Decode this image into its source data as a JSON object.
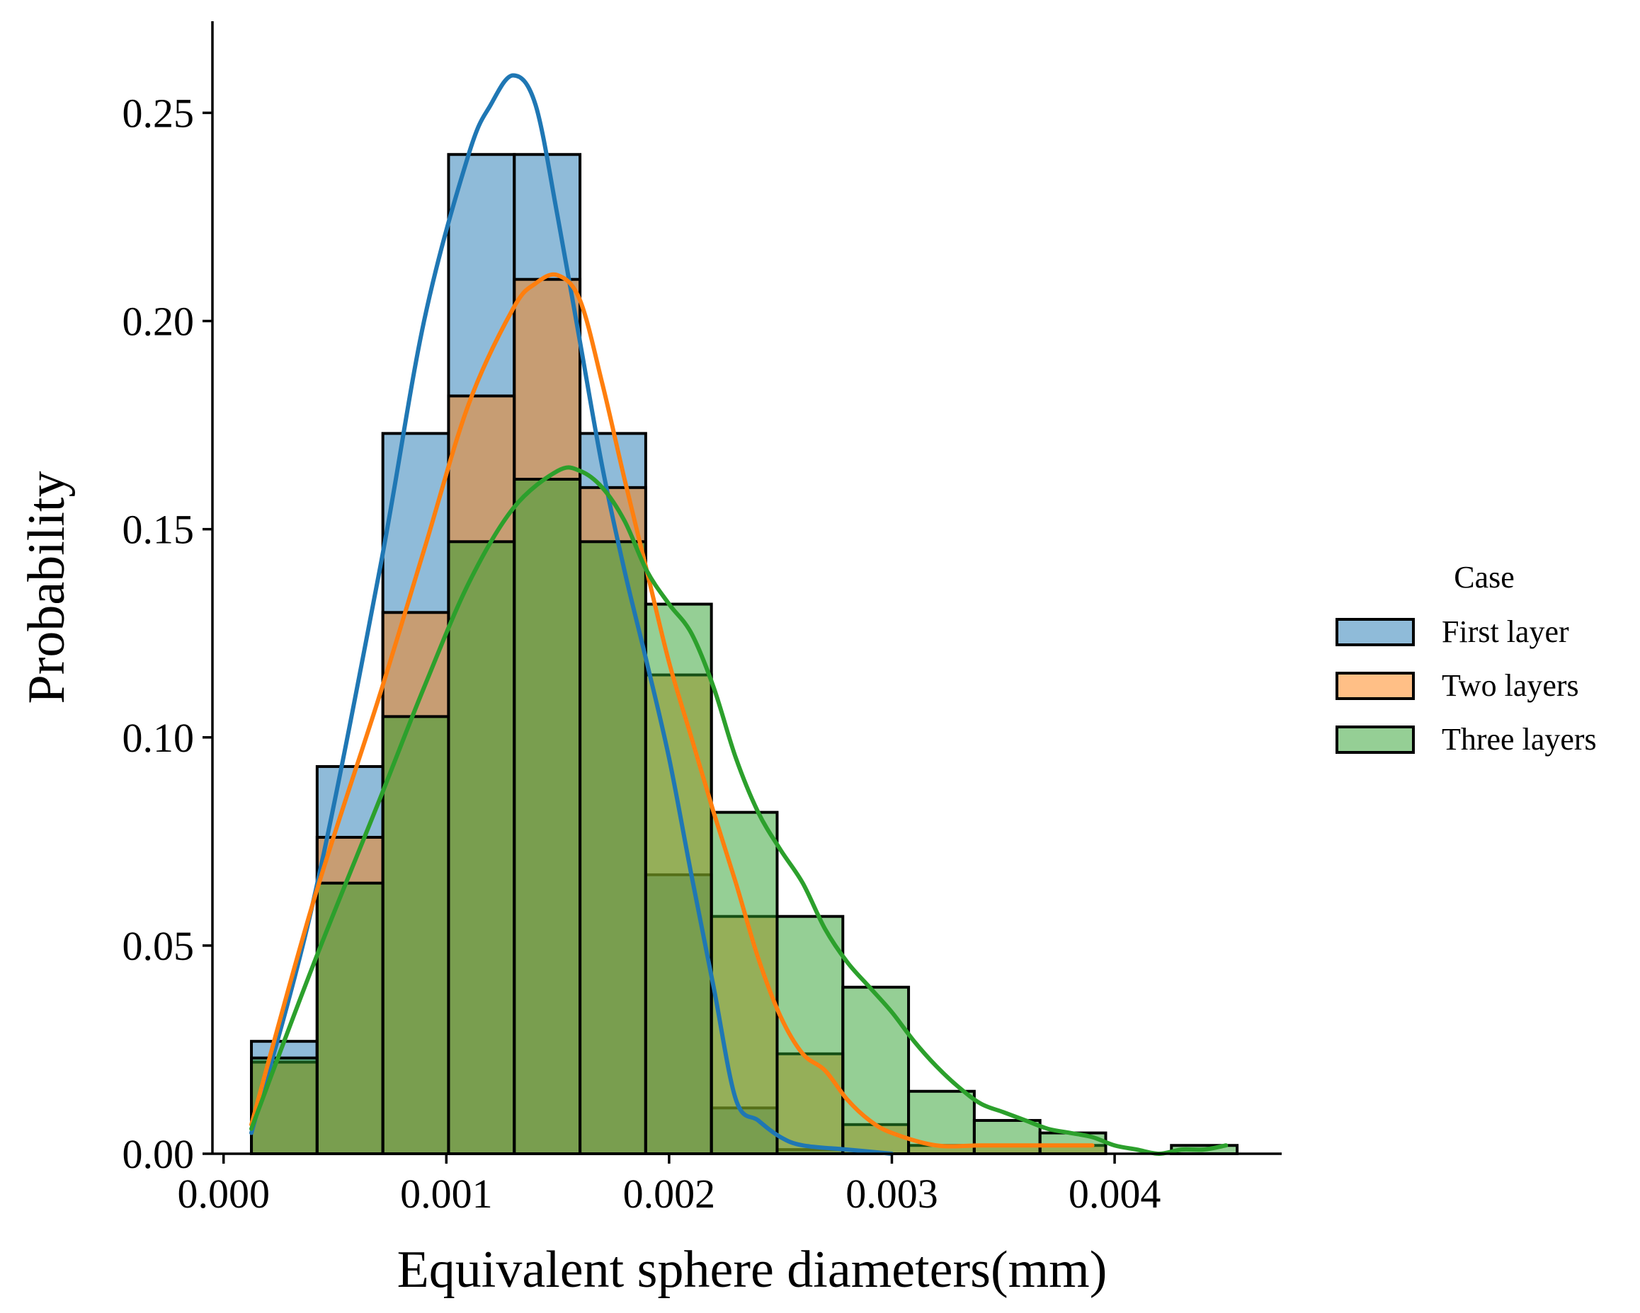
{
  "chart_data": {
    "type": "histogram",
    "title": "",
    "xlabel": "Equivalent sphere diameters(mm)",
    "ylabel": "Probability",
    "xlim": [
      -5e-05,
      0.00475
    ],
    "ylim": [
      0,
      0.272
    ],
    "xticks": [
      0.0,
      0.001,
      0.002,
      0.003,
      0.004
    ],
    "xtick_labels": [
      "0.000",
      "0.001",
      "0.002",
      "0.003",
      "0.004"
    ],
    "yticks": [
      0.0,
      0.05,
      0.1,
      0.15,
      0.2,
      0.25
    ],
    "ytick_labels": [
      "0.00",
      "0.05",
      "0.10",
      "0.15",
      "0.20",
      "0.25"
    ],
    "bin_edges": [
      0.000125,
      0.00042,
      0.000715,
      0.00101,
      0.001305,
      0.0016,
      0.001895,
      0.00219,
      0.002485,
      0.00278,
      0.003075,
      0.00337,
      0.003665,
      0.00396,
      0.004255,
      0.00455
    ],
    "legend": {
      "title": "Case",
      "location": "right"
    },
    "series": [
      {
        "name": "First layer",
        "color": "#1f77b4",
        "values": [
          0.027,
          0.093,
          0.173,
          0.24,
          0.24,
          0.173,
          0.067,
          0.011,
          0.001,
          0,
          0,
          0,
          0,
          0,
          0
        ],
        "kde_x": [
          0.000125,
          0.0004,
          0.0007,
          0.0009,
          0.0011,
          0.0012,
          0.0013,
          0.0014,
          0.0015,
          0.0016,
          0.0017,
          0.0018,
          0.0019,
          0.002,
          0.0021,
          0.0022,
          0.0023,
          0.0024,
          0.0025,
          0.0026,
          0.0028,
          0.003
        ],
        "kde_y": [
          0.005,
          0.06,
          0.14,
          0.2,
          0.24,
          0.252,
          0.259,
          0.252,
          0.225,
          0.195,
          0.165,
          0.14,
          0.118,
          0.095,
          0.067,
          0.04,
          0.013,
          0.008,
          0.004,
          0.002,
          0.001,
          0.0
        ]
      },
      {
        "name": "Two layers",
        "color": "#ff7f0e",
        "values": [
          0.022,
          0.076,
          0.13,
          0.182,
          0.21,
          0.16,
          0.115,
          0.057,
          0.024,
          0.007,
          0.002,
          0.002,
          0.002,
          0,
          0
        ],
        "kde_x": [
          0.000125,
          0.0004,
          0.0007,
          0.0009,
          0.0011,
          0.0013,
          0.0014,
          0.0015,
          0.0016,
          0.0017,
          0.0018,
          0.0019,
          0.002,
          0.0021,
          0.0022,
          0.0023,
          0.0024,
          0.0025,
          0.0026,
          0.0027,
          0.0028,
          0.0029,
          0.003,
          0.0032,
          0.0034,
          0.0036,
          0.0038,
          0.0039
        ],
        "kde_y": [
          0.007,
          0.06,
          0.11,
          0.145,
          0.18,
          0.203,
          0.209,
          0.211,
          0.205,
          0.185,
          0.162,
          0.14,
          0.118,
          0.1,
          0.082,
          0.065,
          0.047,
          0.033,
          0.024,
          0.02,
          0.013,
          0.008,
          0.005,
          0.002,
          0.002,
          0.002,
          0.002,
          0.002
        ]
      },
      {
        "name": "Three layers",
        "color": "#2ca02c",
        "values": [
          0.023,
          0.065,
          0.105,
          0.147,
          0.162,
          0.147,
          0.132,
          0.082,
          0.057,
          0.04,
          0.015,
          0.008,
          0.005,
          0,
          0.002
        ],
        "kde_x": [
          0.000125,
          0.0004,
          0.0007,
          0.0009,
          0.0011,
          0.0013,
          0.0015,
          0.0016,
          0.0017,
          0.0018,
          0.0019,
          0.002,
          0.0021,
          0.0022,
          0.0023,
          0.0024,
          0.0025,
          0.0026,
          0.0027,
          0.0028,
          0.0029,
          0.003,
          0.0031,
          0.0032,
          0.0033,
          0.0034,
          0.0035,
          0.0036,
          0.0037,
          0.0038,
          0.0039,
          0.004,
          0.0041,
          0.0042,
          0.0043,
          0.0044,
          0.0045
        ],
        "kde_y": [
          0.006,
          0.045,
          0.085,
          0.112,
          0.137,
          0.155,
          0.164,
          0.164,
          0.16,
          0.152,
          0.14,
          0.132,
          0.125,
          0.112,
          0.095,
          0.082,
          0.073,
          0.065,
          0.054,
          0.046,
          0.04,
          0.034,
          0.027,
          0.021,
          0.016,
          0.012,
          0.01,
          0.008,
          0.006,
          0.005,
          0.004,
          0.002,
          0.001,
          0.0,
          0.001,
          0.001,
          0.002
        ]
      }
    ]
  }
}
